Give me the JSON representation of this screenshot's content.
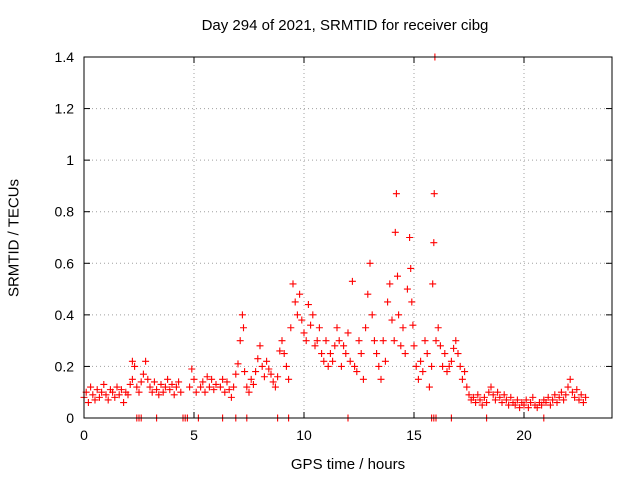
{
  "chart_data": {
    "type": "scatter",
    "title": "Day 294 of 2021, SRMTID for receiver cibg",
    "xlabel": "GPS time / hours",
    "ylabel": "SRMTID / TECUs",
    "xlim": [
      0,
      24
    ],
    "ylim": [
      0,
      1.4
    ],
    "xticks": [
      0,
      5,
      10,
      15,
      20
    ],
    "yticks": [
      0,
      0.2,
      0.4,
      0.6,
      0.8,
      1,
      1.2,
      1.4
    ],
    "ytick_labels": [
      "0",
      "0.2",
      "0.4",
      "0.6",
      "0.8",
      "1",
      "1.2",
      "1.4"
    ],
    "grid": true,
    "marker": "+",
    "color": "#ff0000",
    "series": [
      {
        "name": "SRMTID",
        "points": [
          [
            0.0,
            0.08
          ],
          [
            0.1,
            0.1
          ],
          [
            0.2,
            0.06
          ],
          [
            0.3,
            0.12
          ],
          [
            0.4,
            0.09
          ],
          [
            0.5,
            0.07
          ],
          [
            0.6,
            0.11
          ],
          [
            0.7,
            0.08
          ],
          [
            0.8,
            0.1
          ],
          [
            0.9,
            0.13
          ],
          [
            1.0,
            0.09
          ],
          [
            1.1,
            0.07
          ],
          [
            1.2,
            0.11
          ],
          [
            1.3,
            0.1
          ],
          [
            1.4,
            0.08
          ],
          [
            1.5,
            0.12
          ],
          [
            1.6,
            0.09
          ],
          [
            1.7,
            0.11
          ],
          [
            1.8,
            0.06
          ],
          [
            1.9,
            0.1
          ],
          [
            2.0,
            0.09
          ],
          [
            2.1,
            0.13
          ],
          [
            2.2,
            0.15
          ],
          [
            2.2,
            0.22
          ],
          [
            2.3,
            0.2
          ],
          [
            2.4,
            0.12
          ],
          [
            2.5,
            0.1
          ],
          [
            2.6,
            0.14
          ],
          [
            2.7,
            0.17
          ],
          [
            2.8,
            0.22
          ],
          [
            2.9,
            0.15
          ],
          [
            3.0,
            0.12
          ],
          [
            3.1,
            0.1
          ],
          [
            3.2,
            0.14
          ],
          [
            3.3,
            0.11
          ],
          [
            3.4,
            0.09
          ],
          [
            3.5,
            0.13
          ],
          [
            3.6,
            0.1
          ],
          [
            3.7,
            0.12
          ],
          [
            3.8,
            0.15
          ],
          [
            3.9,
            0.11
          ],
          [
            4.0,
            0.13
          ],
          [
            4.1,
            0.09
          ],
          [
            4.2,
            0.12
          ],
          [
            4.3,
            0.14
          ],
          [
            4.4,
            0.1
          ],
          [
            4.8,
            0.12
          ],
          [
            4.9,
            0.19
          ],
          [
            5.0,
            0.15
          ],
          [
            5.1,
            0.1
          ],
          [
            5.3,
            0.12
          ],
          [
            5.4,
            0.14
          ],
          [
            5.5,
            0.1
          ],
          [
            5.6,
            0.16
          ],
          [
            5.7,
            0.12
          ],
          [
            5.8,
            0.15
          ],
          [
            5.9,
            0.11
          ],
          [
            6.0,
            0.13
          ],
          [
            6.2,
            0.12
          ],
          [
            6.3,
            0.15
          ],
          [
            6.4,
            0.1
          ],
          [
            6.5,
            0.14
          ],
          [
            6.6,
            0.11
          ],
          [
            6.7,
            0.08
          ],
          [
            6.8,
            0.12
          ],
          [
            6.9,
            0.17
          ],
          [
            7.0,
            0.21
          ],
          [
            7.1,
            0.3
          ],
          [
            7.2,
            0.4
          ],
          [
            7.25,
            0.35
          ],
          [
            7.3,
            0.18
          ],
          [
            7.4,
            0.12
          ],
          [
            7.5,
            0.1
          ],
          [
            7.6,
            0.15
          ],
          [
            7.7,
            0.13
          ],
          [
            7.8,
            0.18
          ],
          [
            7.9,
            0.23
          ],
          [
            8.0,
            0.28
          ],
          [
            8.1,
            0.2
          ],
          [
            8.2,
            0.16
          ],
          [
            8.3,
            0.22
          ],
          [
            8.4,
            0.19
          ],
          [
            8.5,
            0.17
          ],
          [
            8.6,
            0.14
          ],
          [
            8.7,
            0.12
          ],
          [
            8.8,
            0.16
          ],
          [
            8.9,
            0.26
          ],
          [
            9.0,
            0.3
          ],
          [
            9.1,
            0.25
          ],
          [
            9.2,
            0.2
          ],
          [
            9.3,
            0.15
          ],
          [
            9.4,
            0.35
          ],
          [
            9.5,
            0.52
          ],
          [
            9.6,
            0.45
          ],
          [
            9.7,
            0.4
          ],
          [
            9.8,
            0.48
          ],
          [
            9.9,
            0.38
          ],
          [
            10.0,
            0.33
          ],
          [
            10.1,
            0.3
          ],
          [
            10.2,
            0.44
          ],
          [
            10.3,
            0.36
          ],
          [
            10.4,
            0.4
          ],
          [
            10.5,
            0.28
          ],
          [
            10.6,
            0.3
          ],
          [
            10.7,
            0.35
          ],
          [
            10.8,
            0.25
          ],
          [
            10.9,
            0.22
          ],
          [
            11.0,
            0.3
          ],
          [
            11.1,
            0.2
          ],
          [
            11.2,
            0.25
          ],
          [
            11.3,
            0.22
          ],
          [
            11.4,
            0.28
          ],
          [
            11.5,
            0.35
          ],
          [
            11.6,
            0.3
          ],
          [
            11.7,
            0.2
          ],
          [
            11.8,
            0.28
          ],
          [
            11.9,
            0.25
          ],
          [
            12.0,
            0.33
          ],
          [
            12.1,
            0.22
          ],
          [
            12.2,
            0.53
          ],
          [
            12.3,
            0.2
          ],
          [
            12.4,
            0.18
          ],
          [
            12.5,
            0.3
          ],
          [
            12.6,
            0.25
          ],
          [
            12.7,
            0.15
          ],
          [
            12.8,
            0.35
          ],
          [
            12.9,
            0.48
          ],
          [
            13.0,
            0.6
          ],
          [
            13.1,
            0.4
          ],
          [
            13.2,
            0.3
          ],
          [
            13.3,
            0.25
          ],
          [
            13.4,
            0.2
          ],
          [
            13.5,
            0.15
          ],
          [
            13.6,
            0.3
          ],
          [
            13.7,
            0.22
          ],
          [
            13.8,
            0.45
          ],
          [
            13.9,
            0.52
          ],
          [
            14.0,
            0.38
          ],
          [
            14.1,
            0.3
          ],
          [
            14.15,
            0.72
          ],
          [
            14.2,
            0.87
          ],
          [
            14.25,
            0.55
          ],
          [
            14.3,
            0.4
          ],
          [
            14.4,
            0.28
          ],
          [
            14.5,
            0.35
          ],
          [
            14.6,
            0.25
          ],
          [
            14.7,
            0.5
          ],
          [
            14.8,
            0.7
          ],
          [
            14.85,
            0.58
          ],
          [
            14.9,
            0.45
          ],
          [
            14.95,
            0.36
          ],
          [
            15.0,
            0.28
          ],
          [
            15.1,
            0.2
          ],
          [
            15.2,
            0.15
          ],
          [
            15.3,
            0.22
          ],
          [
            15.4,
            0.18
          ],
          [
            15.5,
            0.3
          ],
          [
            15.6,
            0.25
          ],
          [
            15.7,
            0.12
          ],
          [
            15.8,
            0.2
          ],
          [
            15.85,
            0.52
          ],
          [
            15.9,
            0.68
          ],
          [
            15.92,
            0.87
          ],
          [
            15.95,
            1.4
          ],
          [
            16.0,
            0.3
          ],
          [
            16.1,
            0.35
          ],
          [
            16.2,
            0.28
          ],
          [
            16.3,
            0.2
          ],
          [
            16.4,
            0.25
          ],
          [
            16.5,
            0.18
          ],
          [
            16.6,
            0.2
          ],
          [
            16.7,
            0.22
          ],
          [
            16.8,
            0.27
          ],
          [
            16.9,
            0.3
          ],
          [
            17.0,
            0.25
          ],
          [
            17.1,
            0.2
          ],
          [
            17.2,
            0.15
          ],
          [
            17.3,
            0.18
          ],
          [
            17.4,
            0.12
          ],
          [
            17.5,
            0.09
          ],
          [
            17.6,
            0.07
          ],
          [
            17.7,
            0.08
          ],
          [
            17.8,
            0.06
          ],
          [
            17.9,
            0.09
          ],
          [
            18.0,
            0.07
          ],
          [
            18.1,
            0.05
          ],
          [
            18.2,
            0.08
          ],
          [
            18.3,
            0.06
          ],
          [
            18.4,
            0.1
          ],
          [
            18.5,
            0.12
          ],
          [
            18.6,
            0.09
          ],
          [
            18.7,
            0.07
          ],
          [
            18.8,
            0.1
          ],
          [
            18.9,
            0.08
          ],
          [
            19.0,
            0.06
          ],
          [
            19.1,
            0.09
          ],
          [
            19.2,
            0.07
          ],
          [
            19.3,
            0.05
          ],
          [
            19.4,
            0.08
          ],
          [
            19.5,
            0.06
          ],
          [
            19.6,
            0.05
          ],
          [
            19.7,
            0.07
          ],
          [
            19.8,
            0.04
          ],
          [
            19.9,
            0.06
          ],
          [
            20.0,
            0.05
          ],
          [
            20.1,
            0.07
          ],
          [
            20.2,
            0.04
          ],
          [
            20.3,
            0.06
          ],
          [
            20.4,
            0.08
          ],
          [
            20.5,
            0.05
          ],
          [
            20.6,
            0.04
          ],
          [
            20.7,
            0.06
          ],
          [
            20.8,
            0.05
          ],
          [
            20.9,
            0.07
          ],
          [
            21.0,
            0.06
          ],
          [
            21.1,
            0.08
          ],
          [
            21.2,
            0.05
          ],
          [
            21.3,
            0.07
          ],
          [
            21.4,
            0.09
          ],
          [
            21.5,
            0.06
          ],
          [
            21.6,
            0.08
          ],
          [
            21.7,
            0.1
          ],
          [
            21.8,
            0.07
          ],
          [
            21.9,
            0.09
          ],
          [
            22.0,
            0.12
          ],
          [
            22.1,
            0.15
          ],
          [
            22.2,
            0.1
          ],
          [
            22.3,
            0.08
          ],
          [
            22.4,
            0.11
          ],
          [
            22.5,
            0.07
          ],
          [
            22.6,
            0.09
          ],
          [
            22.7,
            0.06
          ],
          [
            22.8,
            0.08
          ],
          [
            2.4,
            0.0
          ],
          [
            2.5,
            0.0
          ],
          [
            2.6,
            0.0
          ],
          [
            3.3,
            0.0
          ],
          [
            4.5,
            0.0
          ],
          [
            4.6,
            0.0
          ],
          [
            4.7,
            0.0
          ],
          [
            5.2,
            0.0
          ],
          [
            6.3,
            0.0
          ],
          [
            6.9,
            0.0
          ],
          [
            7.4,
            0.0
          ],
          [
            8.8,
            0.0
          ],
          [
            9.3,
            0.0
          ],
          [
            12.0,
            0.0
          ],
          [
            15.8,
            0.0
          ],
          [
            15.9,
            0.0
          ],
          [
            16.0,
            0.0
          ],
          [
            16.7,
            0.0
          ],
          [
            18.3,
            0.0
          ],
          [
            20.9,
            0.0
          ]
        ]
      }
    ]
  }
}
